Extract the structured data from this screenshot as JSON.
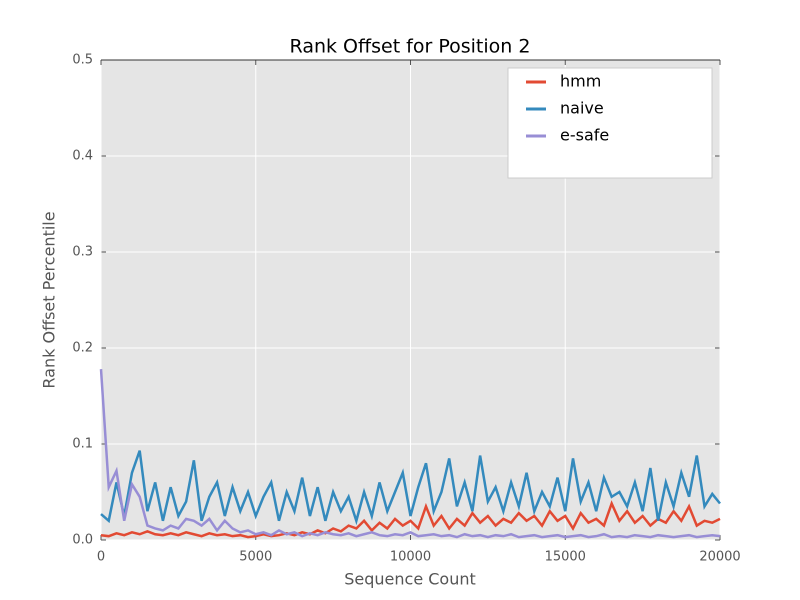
{
  "chart_data": {
    "type": "line",
    "title": "Rank Offset for Position 2",
    "xlabel": "Sequence Count",
    "ylabel": "Rank Offset Percentile",
    "x": [
      0,
      250,
      500,
      750,
      1000,
      1250,
      1500,
      1750,
      2000,
      2250,
      2500,
      2750,
      3000,
      3250,
      3500,
      3750,
      4000,
      4250,
      4500,
      4750,
      5000,
      5250,
      5500,
      5750,
      6000,
      6250,
      6500,
      6750,
      7000,
      7250,
      7500,
      7750,
      8000,
      8250,
      8500,
      8750,
      9000,
      9250,
      9500,
      9750,
      10000,
      10250,
      10500,
      10750,
      11000,
      11250,
      11500,
      11750,
      12000,
      12250,
      12500,
      12750,
      13000,
      13250,
      13500,
      13750,
      14000,
      14250,
      14500,
      14750,
      15000,
      15250,
      15500,
      15750,
      16000,
      16250,
      16500,
      16750,
      17000,
      17250,
      17500,
      17750,
      18000,
      18250,
      18500,
      18750,
      19000,
      19250,
      19500,
      19750,
      20000
    ],
    "series": [
      {
        "name": "hmm",
        "color": "#e24a33",
        "values": [
          0.005,
          0.004,
          0.007,
          0.005,
          0.008,
          0.006,
          0.009,
          0.006,
          0.005,
          0.007,
          0.005,
          0.008,
          0.006,
          0.004,
          0.007,
          0.005,
          0.006,
          0.004,
          0.005,
          0.003,
          0.004,
          0.006,
          0.004,
          0.005,
          0.007,
          0.005,
          0.008,
          0.006,
          0.01,
          0.007,
          0.012,
          0.009,
          0.015,
          0.012,
          0.02,
          0.01,
          0.018,
          0.012,
          0.022,
          0.015,
          0.02,
          0.012,
          0.035,
          0.015,
          0.025,
          0.012,
          0.022,
          0.015,
          0.028,
          0.018,
          0.025,
          0.015,
          0.022,
          0.018,
          0.028,
          0.02,
          0.025,
          0.015,
          0.03,
          0.02,
          0.025,
          0.012,
          0.028,
          0.018,
          0.022,
          0.015,
          0.038,
          0.02,
          0.03,
          0.018,
          0.025,
          0.015,
          0.022,
          0.018,
          0.03,
          0.02,
          0.035,
          0.015,
          0.02,
          0.018,
          0.022
        ]
      },
      {
        "name": "naive",
        "color": "#348abd",
        "values": [
          0.027,
          0.02,
          0.06,
          0.025,
          0.07,
          0.093,
          0.03,
          0.06,
          0.02,
          0.055,
          0.025,
          0.04,
          0.083,
          0.02,
          0.045,
          0.06,
          0.025,
          0.055,
          0.03,
          0.05,
          0.025,
          0.045,
          0.06,
          0.02,
          0.05,
          0.03,
          0.065,
          0.025,
          0.055,
          0.02,
          0.05,
          0.03,
          0.045,
          0.02,
          0.05,
          0.025,
          0.06,
          0.03,
          0.05,
          0.07,
          0.025,
          0.055,
          0.08,
          0.03,
          0.05,
          0.085,
          0.035,
          0.06,
          0.03,
          0.088,
          0.04,
          0.055,
          0.03,
          0.06,
          0.035,
          0.07,
          0.03,
          0.05,
          0.035,
          0.065,
          0.03,
          0.085,
          0.04,
          0.06,
          0.03,
          0.065,
          0.045,
          0.05,
          0.035,
          0.06,
          0.03,
          0.075,
          0.02,
          0.06,
          0.035,
          0.07,
          0.045,
          0.088,
          0.035,
          0.048,
          0.038
        ]
      },
      {
        "name": "e-safe",
        "color": "#988ed5",
        "values": [
          0.178,
          0.055,
          0.072,
          0.02,
          0.058,
          0.045,
          0.015,
          0.012,
          0.01,
          0.015,
          0.012,
          0.022,
          0.02,
          0.015,
          0.022,
          0.01,
          0.02,
          0.012,
          0.008,
          0.01,
          0.006,
          0.008,
          0.005,
          0.01,
          0.006,
          0.008,
          0.004,
          0.007,
          0.005,
          0.008,
          0.006,
          0.005,
          0.007,
          0.004,
          0.006,
          0.008,
          0.005,
          0.004,
          0.006,
          0.005,
          0.008,
          0.004,
          0.005,
          0.006,
          0.004,
          0.005,
          0.003,
          0.006,
          0.004,
          0.005,
          0.003,
          0.005,
          0.004,
          0.006,
          0.003,
          0.004,
          0.005,
          0.003,
          0.004,
          0.005,
          0.003,
          0.004,
          0.005,
          0.003,
          0.004,
          0.006,
          0.003,
          0.004,
          0.003,
          0.005,
          0.004,
          0.003,
          0.005,
          0.004,
          0.003,
          0.004,
          0.005,
          0.003,
          0.004,
          0.005,
          0.004
        ]
      }
    ],
    "xlim": [
      0,
      20000
    ],
    "xticks": [
      0,
      5000,
      10000,
      15000,
      20000
    ],
    "ylim": [
      0,
      0.5
    ],
    "yticks": [
      {
        "value": 0,
        "label": "0.0"
      },
      0.1,
      0.2,
      0.3,
      0.4,
      0.5
    ],
    "grid": true,
    "legend": "upper right"
  }
}
